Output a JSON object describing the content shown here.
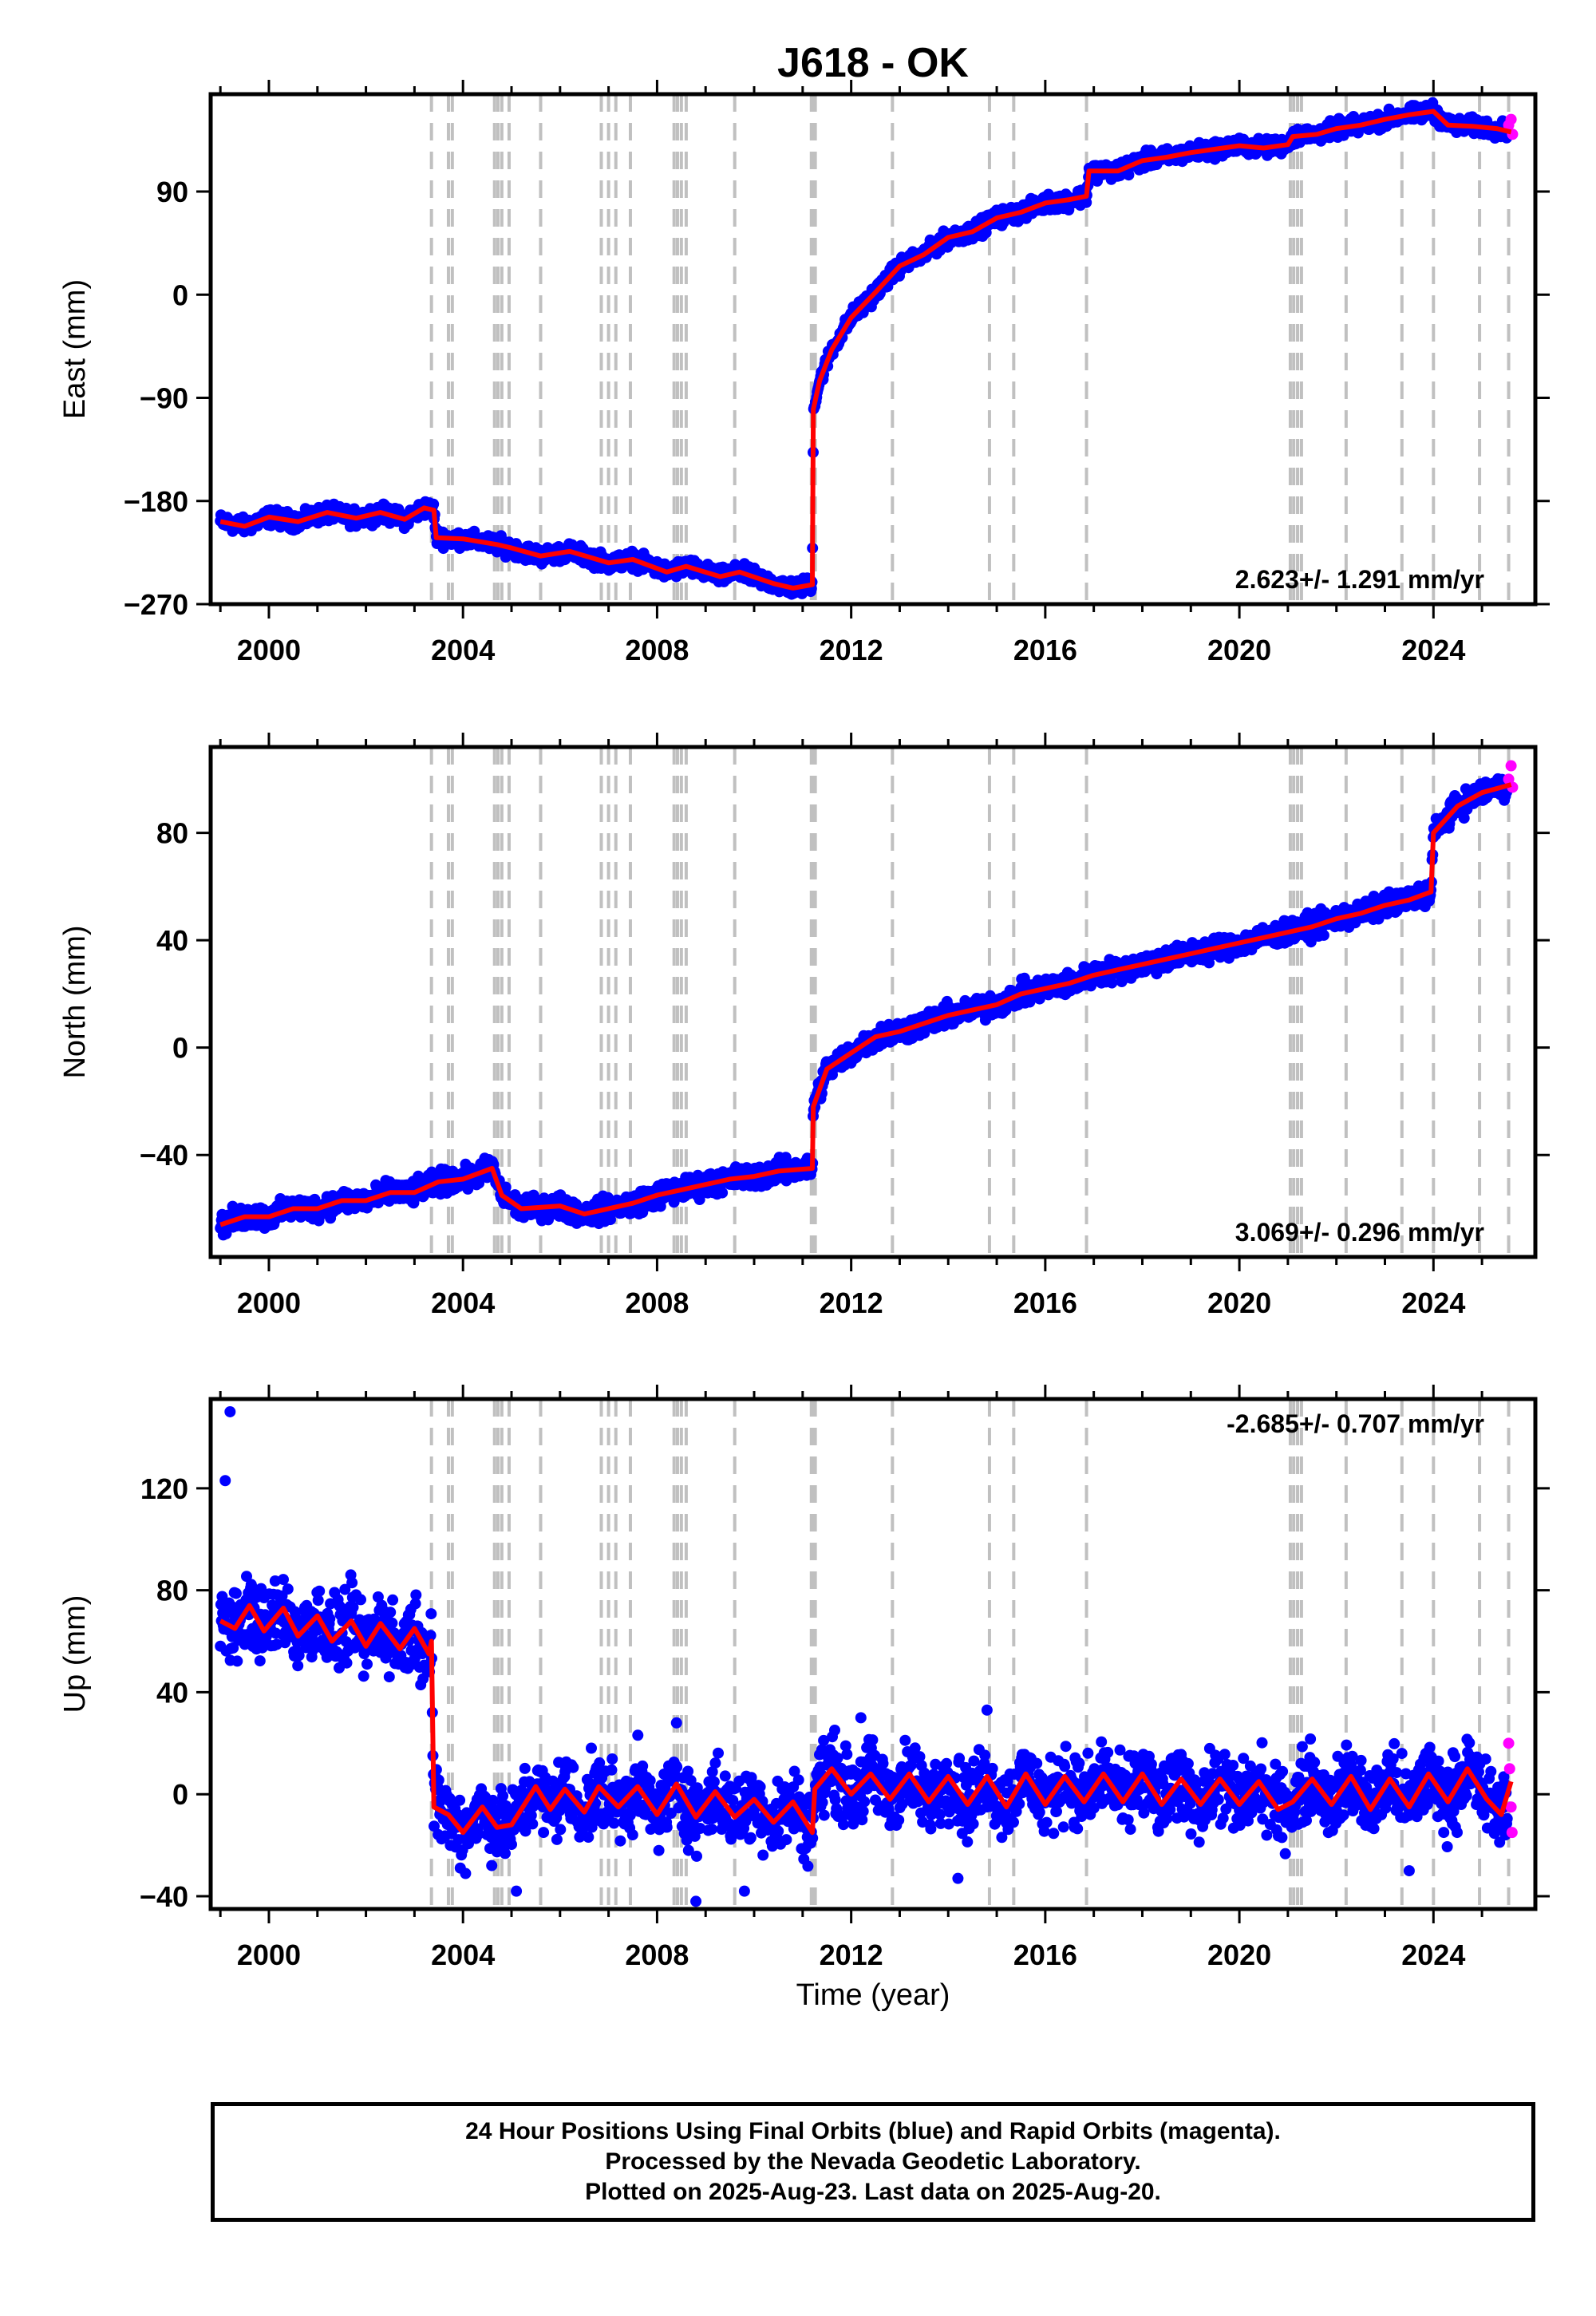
{
  "figure": {
    "title": "J618 - OK",
    "xlabel": "Time (year)",
    "caption_lines": [
      "24 Hour Positions Using Final Orbits (blue) and Rapid Orbits (magenta).",
      "Processed by the Nevada Geodetic Laboratory.",
      "Plotted on 2025-Aug-23. Last data on 2025-Aug-20."
    ],
    "colors": {
      "final_orbits": "#0000ff",
      "rapid_orbits": "#ff00ff",
      "model_fit": "#ff0000",
      "event_lines": "#c0c0c0"
    }
  },
  "chart_data": [
    {
      "type": "scatter",
      "ylabel": "East (mm)",
      "rate_label": "2.623+/- 1.291 mm/yr",
      "xlim": [
        1998.8,
        2026.1
      ],
      "ylim": [
        -270,
        175
      ],
      "xticks": [
        2000,
        2004,
        2008,
        2012,
        2016,
        2020,
        2024
      ],
      "yticks": [
        -270,
        -180,
        -90,
        0,
        90
      ],
      "event_lines_x": [
        2003.35,
        2003.7,
        2003.78,
        2004.65,
        2004.72,
        2004.8,
        2004.95,
        2005.6,
        2006.85,
        2007.0,
        2007.15,
        2007.45,
        2008.35,
        2008.42,
        2008.5,
        2008.6,
        2009.6,
        2011.18,
        2011.22,
        2011.26,
        2012.85,
        2014.85,
        2015.35,
        2016.85,
        2021.05,
        2021.12,
        2021.2,
        2021.28,
        2022.2,
        2023.35,
        2024.0,
        2024.95,
        2025.55
      ],
      "fit_line": [
        {
          "x": 1999.0,
          "y": -198
        },
        {
          "x": 1999.5,
          "y": -202
        },
        {
          "x": 2000.0,
          "y": -194
        },
        {
          "x": 2000.6,
          "y": -198
        },
        {
          "x": 2001.2,
          "y": -190
        },
        {
          "x": 2001.8,
          "y": -195
        },
        {
          "x": 2002.3,
          "y": -190
        },
        {
          "x": 2002.8,
          "y": -196
        },
        {
          "x": 2003.2,
          "y": -186
        },
        {
          "x": 2003.4,
          "y": -188
        },
        {
          "x": 2003.45,
          "y": -212
        },
        {
          "x": 2004.0,
          "y": -213
        },
        {
          "x": 2004.7,
          "y": -218
        },
        {
          "x": 2005.0,
          "y": -221
        },
        {
          "x": 2005.6,
          "y": -228
        },
        {
          "x": 2006.2,
          "y": -224
        },
        {
          "x": 2007.0,
          "y": -234
        },
        {
          "x": 2007.5,
          "y": -231
        },
        {
          "x": 2008.2,
          "y": -242
        },
        {
          "x": 2008.6,
          "y": -237
        },
        {
          "x": 2009.3,
          "y": -246
        },
        {
          "x": 2009.7,
          "y": -242
        },
        {
          "x": 2010.4,
          "y": -252
        },
        {
          "x": 2010.8,
          "y": -256
        },
        {
          "x": 2011.2,
          "y": -253
        },
        {
          "x": 2011.22,
          "y": -100
        },
        {
          "x": 2011.35,
          "y": -75
        },
        {
          "x": 2011.6,
          "y": -48
        },
        {
          "x": 2012.0,
          "y": -20
        },
        {
          "x": 2012.5,
          "y": 2
        },
        {
          "x": 2013.0,
          "y": 25
        },
        {
          "x": 2013.5,
          "y": 35
        },
        {
          "x": 2014.0,
          "y": 50
        },
        {
          "x": 2014.5,
          "y": 55
        },
        {
          "x": 2015.0,
          "y": 67
        },
        {
          "x": 2015.5,
          "y": 72
        },
        {
          "x": 2016.0,
          "y": 80
        },
        {
          "x": 2016.5,
          "y": 83
        },
        {
          "x": 2016.85,
          "y": 86
        },
        {
          "x": 2016.9,
          "y": 108
        },
        {
          "x": 2017.5,
          "y": 108
        },
        {
          "x": 2018.0,
          "y": 117
        },
        {
          "x": 2018.5,
          "y": 120
        },
        {
          "x": 2019.0,
          "y": 124
        },
        {
          "x": 2019.5,
          "y": 127
        },
        {
          "x": 2020.0,
          "y": 130
        },
        {
          "x": 2020.5,
          "y": 128
        },
        {
          "x": 2021.0,
          "y": 131
        },
        {
          "x": 2021.1,
          "y": 138
        },
        {
          "x": 2021.6,
          "y": 140
        },
        {
          "x": 2022.0,
          "y": 145
        },
        {
          "x": 2022.5,
          "y": 148
        },
        {
          "x": 2023.0,
          "y": 153
        },
        {
          "x": 2023.5,
          "y": 157
        },
        {
          "x": 2024.0,
          "y": 160
        },
        {
          "x": 2024.3,
          "y": 148
        },
        {
          "x": 2024.8,
          "y": 147
        },
        {
          "x": 2025.3,
          "y": 145
        },
        {
          "x": 2025.6,
          "y": 142
        }
      ],
      "scatter_spread_mm": 5,
      "rapid_points": [
        {
          "x": 2025.55,
          "y": 148
        },
        {
          "x": 2025.6,
          "y": 153
        },
        {
          "x": 2025.63,
          "y": 140
        }
      ]
    },
    {
      "type": "scatter",
      "ylabel": "North (mm)",
      "rate_label": "3.069+/- 0.296 mm/yr",
      "xlim": [
        1998.8,
        2026.1
      ],
      "ylim": [
        -78,
        112
      ],
      "xticks": [
        2000,
        2004,
        2008,
        2012,
        2016,
        2020,
        2024
      ],
      "yticks": [
        -40,
        0,
        40,
        80
      ],
      "event_lines_x": [
        2003.35,
        2003.7,
        2003.78,
        2004.65,
        2004.72,
        2004.8,
        2004.95,
        2005.6,
        2006.85,
        2007.0,
        2007.15,
        2007.45,
        2008.35,
        2008.42,
        2008.5,
        2008.6,
        2009.6,
        2011.18,
        2011.22,
        2011.26,
        2012.85,
        2014.85,
        2015.35,
        2016.85,
        2021.05,
        2021.12,
        2021.2,
        2021.28,
        2022.2,
        2023.35,
        2024.0,
        2024.95,
        2025.55
      ],
      "fit_line": [
        {
          "x": 1999.0,
          "y": -66
        },
        {
          "x": 1999.5,
          "y": -63
        },
        {
          "x": 2000.0,
          "y": -63
        },
        {
          "x": 2000.5,
          "y": -60
        },
        {
          "x": 2001.0,
          "y": -60
        },
        {
          "x": 2001.5,
          "y": -57
        },
        {
          "x": 2002.0,
          "y": -57
        },
        {
          "x": 2002.5,
          "y": -54
        },
        {
          "x": 2003.0,
          "y": -54
        },
        {
          "x": 2003.5,
          "y": -50
        },
        {
          "x": 2004.0,
          "y": -49
        },
        {
          "x": 2004.6,
          "y": -45
        },
        {
          "x": 2004.8,
          "y": -55
        },
        {
          "x": 2005.2,
          "y": -60
        },
        {
          "x": 2006.0,
          "y": -59
        },
        {
          "x": 2006.5,
          "y": -62
        },
        {
          "x": 2007.0,
          "y": -60
        },
        {
          "x": 2007.5,
          "y": -58
        },
        {
          "x": 2008.0,
          "y": -55
        },
        {
          "x": 2008.5,
          "y": -53
        },
        {
          "x": 2009.0,
          "y": -51
        },
        {
          "x": 2009.5,
          "y": -49
        },
        {
          "x": 2010.0,
          "y": -48
        },
        {
          "x": 2010.5,
          "y": -46
        },
        {
          "x": 2011.2,
          "y": -45
        },
        {
          "x": 2011.22,
          "y": -22
        },
        {
          "x": 2011.5,
          "y": -8
        },
        {
          "x": 2012.0,
          "y": -2
        },
        {
          "x": 2012.5,
          "y": 4
        },
        {
          "x": 2013.0,
          "y": 6
        },
        {
          "x": 2013.5,
          "y": 9
        },
        {
          "x": 2014.0,
          "y": 12
        },
        {
          "x": 2014.5,
          "y": 14
        },
        {
          "x": 2015.0,
          "y": 16
        },
        {
          "x": 2015.5,
          "y": 20
        },
        {
          "x": 2016.0,
          "y": 22
        },
        {
          "x": 2016.5,
          "y": 24
        },
        {
          "x": 2017.0,
          "y": 27
        },
        {
          "x": 2017.5,
          "y": 29
        },
        {
          "x": 2018.0,
          "y": 31
        },
        {
          "x": 2018.5,
          "y": 33
        },
        {
          "x": 2019.0,
          "y": 35
        },
        {
          "x": 2019.5,
          "y": 37
        },
        {
          "x": 2020.0,
          "y": 39
        },
        {
          "x": 2020.5,
          "y": 41
        },
        {
          "x": 2021.0,
          "y": 43
        },
        {
          "x": 2021.5,
          "y": 45
        },
        {
          "x": 2022.0,
          "y": 48
        },
        {
          "x": 2022.5,
          "y": 50
        },
        {
          "x": 2023.0,
          "y": 53
        },
        {
          "x": 2023.5,
          "y": 55
        },
        {
          "x": 2023.95,
          "y": 58
        },
        {
          "x": 2024.0,
          "y": 80
        },
        {
          "x": 2024.5,
          "y": 90
        },
        {
          "x": 2025.0,
          "y": 95
        },
        {
          "x": 2025.6,
          "y": 98
        }
      ],
      "scatter_spread_mm": 3,
      "rapid_points": [
        {
          "x": 2025.55,
          "y": 100
        },
        {
          "x": 2025.6,
          "y": 105
        },
        {
          "x": 2025.63,
          "y": 97
        }
      ]
    },
    {
      "type": "scatter",
      "ylabel": "Up (mm)",
      "rate_label": "-2.685+/- 0.707 mm/yr",
      "xlim": [
        1998.8,
        2026.1
      ],
      "ylim": [
        -45,
        155
      ],
      "xticks": [
        2000,
        2004,
        2008,
        2012,
        2016,
        2020,
        2024
      ],
      "yticks": [
        -40,
        0,
        40,
        80,
        120
      ],
      "event_lines_x": [
        2003.35,
        2003.7,
        2003.78,
        2004.65,
        2004.72,
        2004.8,
        2004.95,
        2005.6,
        2006.85,
        2007.0,
        2007.15,
        2007.45,
        2008.35,
        2008.42,
        2008.5,
        2008.6,
        2009.6,
        2011.18,
        2011.22,
        2011.26,
        2012.85,
        2014.85,
        2015.35,
        2016.85,
        2021.05,
        2021.12,
        2021.2,
        2021.28,
        2022.2,
        2023.35,
        2024.0,
        2024.95,
        2025.55
      ],
      "fit_line": [
        {
          "x": 1999.0,
          "y": 68
        },
        {
          "x": 1999.3,
          "y": 65
        },
        {
          "x": 1999.6,
          "y": 74
        },
        {
          "x": 1999.9,
          "y": 64
        },
        {
          "x": 2000.3,
          "y": 73
        },
        {
          "x": 2000.6,
          "y": 62
        },
        {
          "x": 2001.0,
          "y": 70
        },
        {
          "x": 2001.3,
          "y": 60
        },
        {
          "x": 2001.7,
          "y": 68
        },
        {
          "x": 2002.0,
          "y": 58
        },
        {
          "x": 2002.3,
          "y": 67
        },
        {
          "x": 2002.7,
          "y": 57
        },
        {
          "x": 2003.0,
          "y": 65
        },
        {
          "x": 2003.3,
          "y": 55
        },
        {
          "x": 2003.35,
          "y": 60
        },
        {
          "x": 2003.4,
          "y": -5
        },
        {
          "x": 2003.7,
          "y": -8
        },
        {
          "x": 2004.0,
          "y": -15
        },
        {
          "x": 2004.4,
          "y": -5
        },
        {
          "x": 2004.7,
          "y": -13
        },
        {
          "x": 2005.0,
          "y": -12
        },
        {
          "x": 2005.5,
          "y": 3
        },
        {
          "x": 2005.8,
          "y": -6
        },
        {
          "x": 2006.1,
          "y": 2
        },
        {
          "x": 2006.5,
          "y": -7
        },
        {
          "x": 2006.8,
          "y": 3
        },
        {
          "x": 2007.2,
          "y": -5
        },
        {
          "x": 2007.6,
          "y": 3
        },
        {
          "x": 2008.0,
          "y": -8
        },
        {
          "x": 2008.4,
          "y": 4
        },
        {
          "x": 2008.8,
          "y": -9
        },
        {
          "x": 2009.2,
          "y": 1
        },
        {
          "x": 2009.6,
          "y": -9
        },
        {
          "x": 2010.0,
          "y": -2
        },
        {
          "x": 2010.4,
          "y": -11
        },
        {
          "x": 2010.8,
          "y": -3
        },
        {
          "x": 2011.2,
          "y": -15
        },
        {
          "x": 2011.25,
          "y": 2
        },
        {
          "x": 2011.6,
          "y": 10
        },
        {
          "x": 2012.0,
          "y": 0
        },
        {
          "x": 2012.4,
          "y": 8
        },
        {
          "x": 2012.8,
          "y": -2
        },
        {
          "x": 2013.2,
          "y": 8
        },
        {
          "x": 2013.6,
          "y": -3
        },
        {
          "x": 2014.0,
          "y": 7
        },
        {
          "x": 2014.4,
          "y": -4
        },
        {
          "x": 2014.8,
          "y": 7
        },
        {
          "x": 2015.2,
          "y": -5
        },
        {
          "x": 2015.6,
          "y": 8
        },
        {
          "x": 2016.0,
          "y": -4
        },
        {
          "x": 2016.4,
          "y": 7
        },
        {
          "x": 2016.8,
          "y": -3
        },
        {
          "x": 2017.2,
          "y": 8
        },
        {
          "x": 2017.6,
          "y": -3
        },
        {
          "x": 2018.0,
          "y": 8
        },
        {
          "x": 2018.4,
          "y": -4
        },
        {
          "x": 2018.8,
          "y": 6
        },
        {
          "x": 2019.2,
          "y": -4
        },
        {
          "x": 2019.6,
          "y": 6
        },
        {
          "x": 2020.0,
          "y": -4
        },
        {
          "x": 2020.4,
          "y": 5
        },
        {
          "x": 2020.8,
          "y": -6
        },
        {
          "x": 2021.1,
          "y": -3
        },
        {
          "x": 2021.5,
          "y": 6
        },
        {
          "x": 2021.9,
          "y": -4
        },
        {
          "x": 2022.3,
          "y": 7
        },
        {
          "x": 2022.7,
          "y": -6
        },
        {
          "x": 2023.1,
          "y": 6
        },
        {
          "x": 2023.5,
          "y": -5
        },
        {
          "x": 2023.9,
          "y": 8
        },
        {
          "x": 2024.3,
          "y": -3
        },
        {
          "x": 2024.7,
          "y": 10
        },
        {
          "x": 2025.1,
          "y": -2
        },
        {
          "x": 2025.4,
          "y": -8
        },
        {
          "x": 2025.6,
          "y": 5
        }
      ],
      "scatter_spread_mm": 10,
      "rapid_points": [
        {
          "x": 2025.55,
          "y": 20
        },
        {
          "x": 2025.57,
          "y": 10
        },
        {
          "x": 2025.6,
          "y": -5
        },
        {
          "x": 2025.62,
          "y": -15
        }
      ],
      "outliers": [
        {
          "x": 1999.2,
          "y": 150
        },
        {
          "x": 1999.1,
          "y": 123
        },
        {
          "x": 2008.4,
          "y": 28
        },
        {
          "x": 2012.2,
          "y": 30
        },
        {
          "x": 2014.2,
          "y": -33
        },
        {
          "x": 2008.8,
          "y": -42
        },
        {
          "x": 2005.1,
          "y": -38
        },
        {
          "x": 2009.8,
          "y": -38
        },
        {
          "x": 2023.5,
          "y": -30
        },
        {
          "x": 2014.8,
          "y": 33
        }
      ]
    }
  ]
}
